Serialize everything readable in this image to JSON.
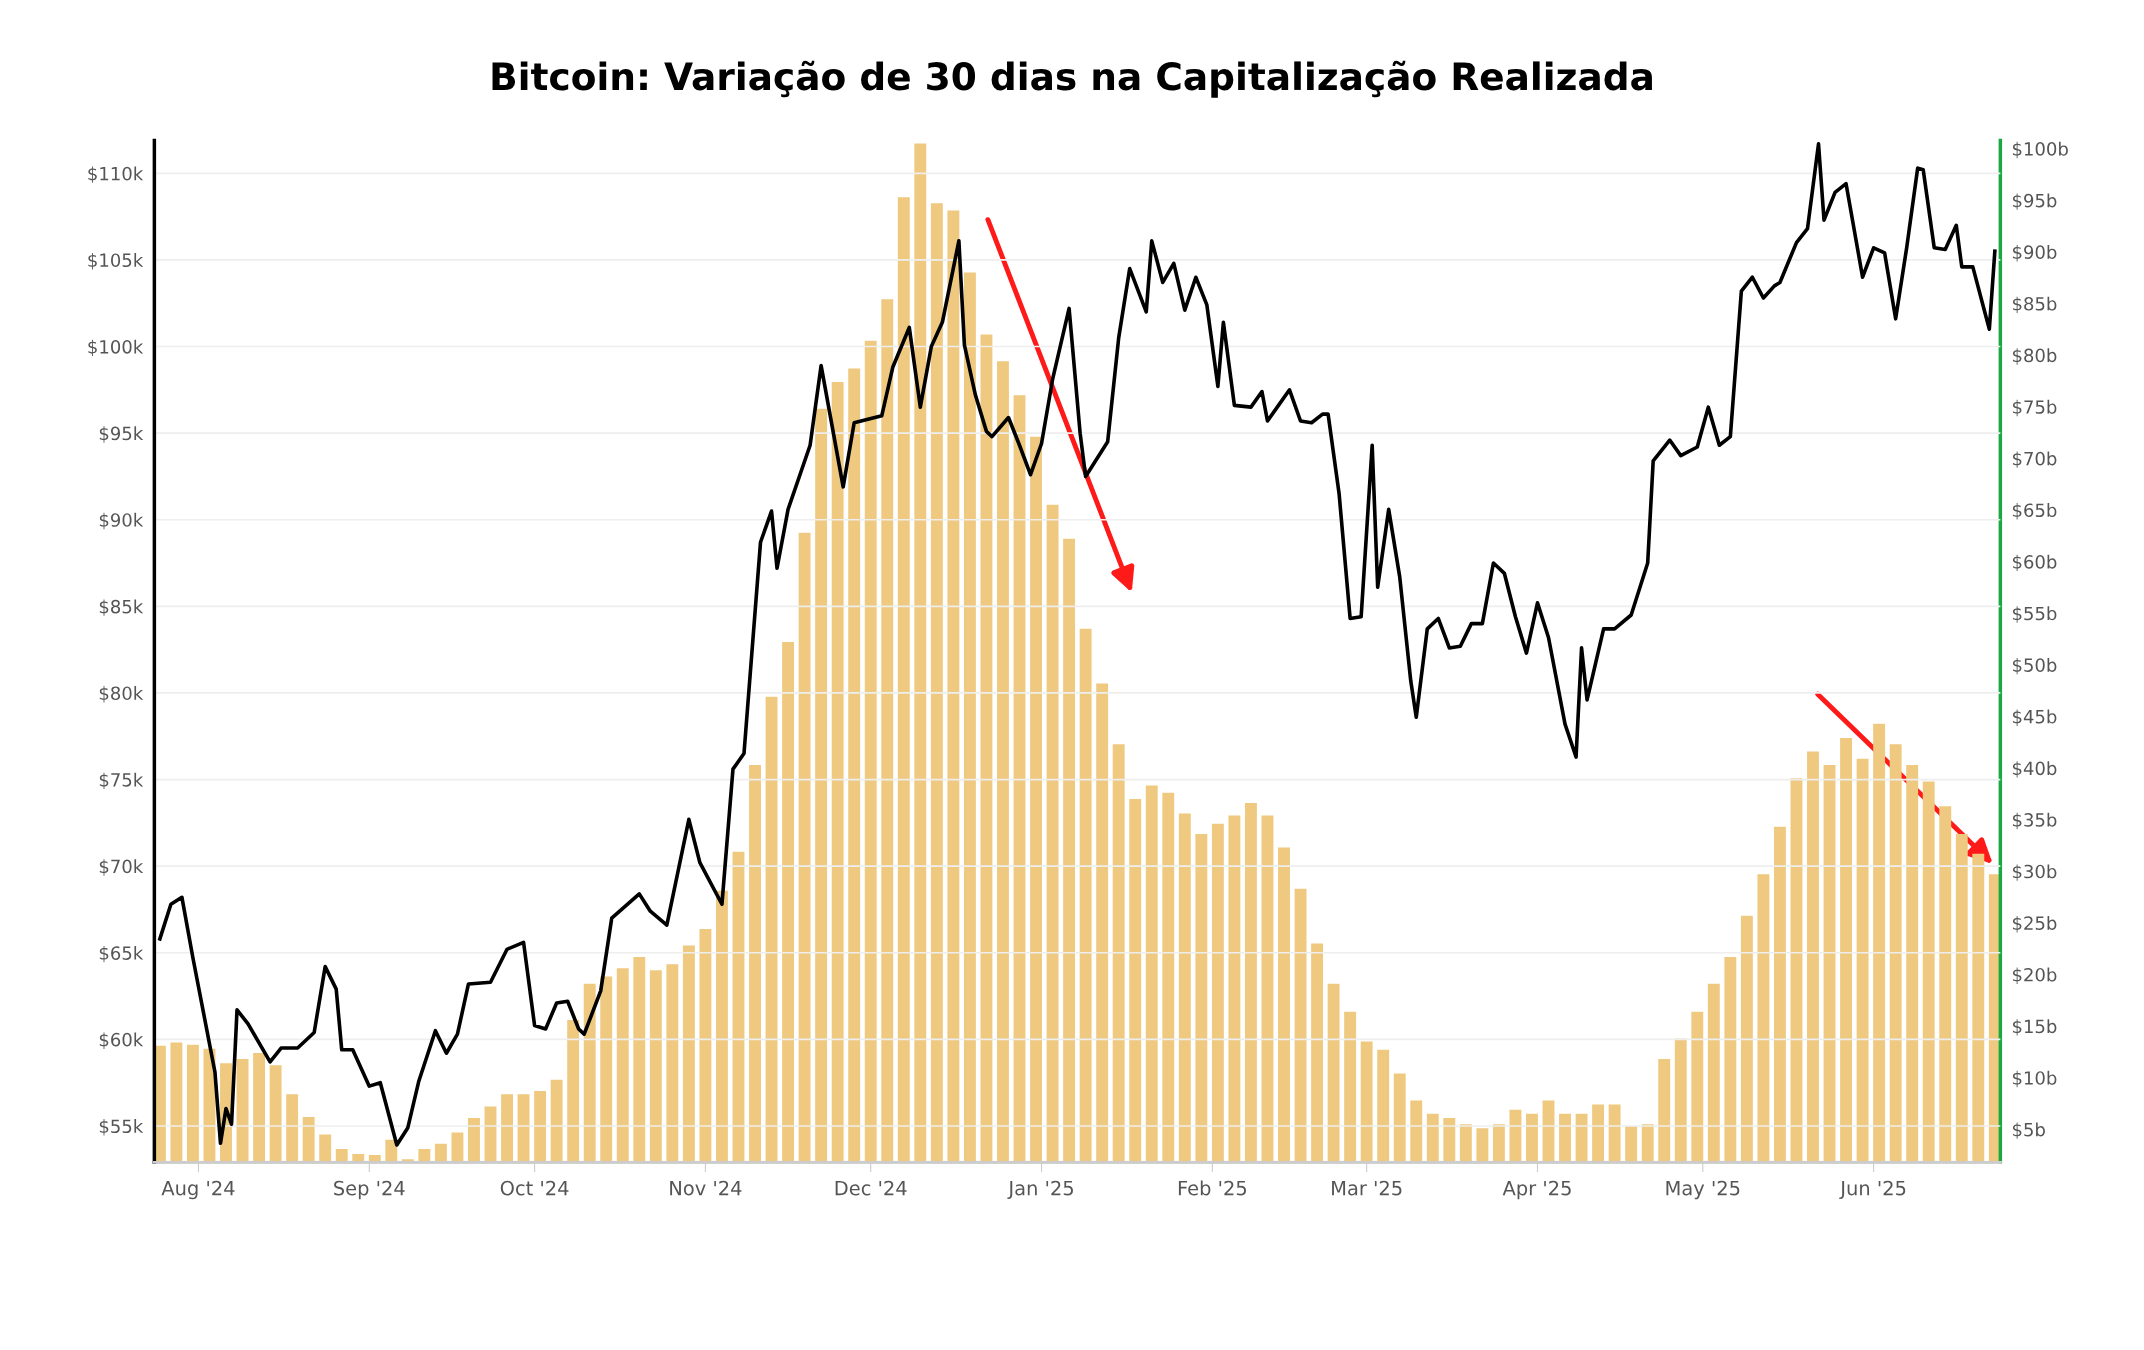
{
  "chart_data": {
    "type": "bar",
    "title": "Bitcoin: Variação de 30 dias na Capitalização Realizada",
    "series": [
      {
        "axis": "y2",
        "color": "#efc97f",
        "x": [
          "2024-07-25",
          "2024-07-28",
          "2024-07-31",
          "2024-08-03",
          "2024-08-06",
          "2024-08-09",
          "2024-08-12",
          "2024-08-15",
          "2024-08-18",
          "2024-08-21",
          "2024-08-24",
          "2024-08-27",
          "2024-08-30",
          "2024-09-02",
          "2024-09-05",
          "2024-09-08",
          "2024-09-11",
          "2024-09-14",
          "2024-09-17",
          "2024-09-20",
          "2024-09-23",
          "2024-09-26",
          "2024-09-29",
          "2024-10-02",
          "2024-10-05",
          "2024-10-08",
          "2024-10-11",
          "2024-10-14",
          "2024-10-17",
          "2024-10-20",
          "2024-10-23",
          "2024-10-26",
          "2024-10-29",
          "2024-11-01",
          "2024-11-04",
          "2024-11-07",
          "2024-11-10",
          "2024-11-13",
          "2024-11-16",
          "2024-11-19",
          "2024-11-22",
          "2024-11-25",
          "2024-11-28",
          "2024-12-01",
          "2024-12-04",
          "2024-12-07",
          "2024-12-10",
          "2024-12-13",
          "2024-12-16",
          "2024-12-19",
          "2024-12-22",
          "2024-12-25",
          "2024-12-28",
          "2024-12-31",
          "2025-01-03",
          "2025-01-06",
          "2025-01-09",
          "2025-01-12",
          "2025-01-15",
          "2025-01-18",
          "2025-01-21",
          "2025-01-24",
          "2025-01-27",
          "2025-01-30",
          "2025-02-02",
          "2025-02-05",
          "2025-02-08",
          "2025-02-11",
          "2025-02-14",
          "2025-02-17",
          "2025-02-20",
          "2025-02-23",
          "2025-02-26",
          "2025-03-01",
          "2025-03-04",
          "2025-03-07",
          "2025-03-10",
          "2025-03-13",
          "2025-03-16",
          "2025-03-19",
          "2025-03-22",
          "2025-03-25",
          "2025-03-28",
          "2025-03-31",
          "2025-04-03",
          "2025-04-06",
          "2025-04-09",
          "2025-04-12",
          "2025-04-15",
          "2025-04-18",
          "2025-04-21",
          "2025-04-24",
          "2025-04-27",
          "2025-04-30",
          "2025-05-03",
          "2025-05-06",
          "2025-05-09",
          "2025-05-12",
          "2025-05-15",
          "2025-05-18",
          "2025-05-21",
          "2025-05-24",
          "2025-05-27",
          "2025-05-30",
          "2025-06-02",
          "2025-06-05",
          "2025-06-08",
          "2025-06-11",
          "2025-06-14",
          "2025-06-17",
          "2025-06-20",
          "2025-06-23"
        ],
        "values": [
          13.1,
          13.4,
          13.2,
          12.8,
          11.4,
          11.8,
          12.4,
          11.2,
          8.4,
          6.2,
          4.5,
          3.1,
          2.6,
          2.5,
          4.0,
          2.1,
          3.1,
          3.6,
          4.7,
          6.1,
          7.2,
          8.4,
          8.4,
          8.7,
          9.8,
          15.6,
          19.1,
          19.8,
          20.6,
          21.7,
          20.4,
          21.0,
          22.8,
          24.4,
          28.1,
          31.9,
          40.3,
          46.9,
          52.2,
          62.8,
          74.8,
          77.4,
          78.7,
          81.4,
          85.4,
          95.3,
          100.5,
          94.7,
          94.0,
          88.0,
          82.0,
          79.4,
          76.1,
          72.1,
          65.5,
          62.2,
          53.5,
          48.2,
          42.3,
          37.0,
          38.3,
          37.6,
          35.6,
          33.6,
          34.6,
          35.4,
          36.6,
          35.4,
          32.3,
          28.3,
          23.0,
          19.1,
          16.4,
          13.5,
          12.7,
          10.4,
          7.8,
          6.5,
          6.1,
          5.5,
          5.1,
          5.5,
          6.9,
          6.5,
          7.8,
          6.5,
          6.5,
          7.4,
          7.4,
          5.3,
          5.5,
          11.8,
          13.8,
          16.4,
          19.1,
          21.7,
          25.7,
          29.7,
          34.3,
          39.0,
          41.6,
          40.3,
          42.9,
          40.9,
          44.3,
          42.3,
          40.3,
          38.7,
          36.3,
          33.6,
          31.7,
          29.7
        ]
      },
      {
        "type": "line",
        "axis": "y",
        "color": "#000000",
        "x": [
          "2024-07-25",
          "2024-07-27",
          "2024-07-29",
          "2024-07-31",
          "2024-08-02",
          "2024-08-04",
          "2024-08-05",
          "2024-08-06",
          "2024-08-07",
          "2024-08-08",
          "2024-08-10",
          "2024-08-14",
          "2024-08-16",
          "2024-08-19",
          "2024-08-22",
          "2024-08-24",
          "2024-08-26",
          "2024-08-27",
          "2024-08-29",
          "2024-09-01",
          "2024-09-03",
          "2024-09-06",
          "2024-09-08",
          "2024-09-10",
          "2024-09-13",
          "2024-09-15",
          "2024-09-17",
          "2024-09-19",
          "2024-09-23",
          "2024-09-26",
          "2024-09-29",
          "2024-10-01",
          "2024-10-03",
          "2024-10-05",
          "2024-10-07",
          "2024-10-09",
          "2024-10-10",
          "2024-10-13",
          "2024-10-15",
          "2024-10-20",
          "2024-10-22",
          "2024-10-25",
          "2024-10-29",
          "2024-10-31",
          "2024-11-04",
          "2024-11-06",
          "2024-11-08",
          "2024-11-11",
          "2024-11-13",
          "2024-11-14",
          "2024-11-16",
          "2024-11-20",
          "2024-11-22",
          "2024-11-26",
          "2024-11-28",
          "2024-12-03",
          "2024-12-05",
          "2024-12-08",
          "2024-12-10",
          "2024-12-12",
          "2024-12-14",
          "2024-12-17",
          "2024-12-18",
          "2024-12-20",
          "2024-12-22",
          "2024-12-23",
          "2024-12-26",
          "2024-12-28",
          "2024-12-30",
          "2025-01-01",
          "2025-01-03",
          "2025-01-06",
          "2025-01-08",
          "2025-01-09",
          "2025-01-13",
          "2025-01-15",
          "2025-01-17",
          "2025-01-20",
          "2025-01-21",
          "2025-01-23",
          "2025-01-25",
          "2025-01-27",
          "2025-01-29",
          "2025-01-31",
          "2025-02-02",
          "2025-02-03",
          "2025-02-05",
          "2025-02-08",
          "2025-02-10",
          "2025-02-11",
          "2025-02-13",
          "2025-02-15",
          "2025-02-17",
          "2025-02-19",
          "2025-02-21",
          "2025-02-22",
          "2025-02-24",
          "2025-02-26",
          "2025-02-28",
          "2025-03-02",
          "2025-03-03",
          "2025-03-05",
          "2025-03-07",
          "2025-03-09",
          "2025-03-10",
          "2025-03-12",
          "2025-03-14",
          "2025-03-16",
          "2025-03-18",
          "2025-03-20",
          "2025-03-22",
          "2025-03-24",
          "2025-03-26",
          "2025-03-28",
          "2025-03-30",
          "2025-04-01",
          "2025-04-03",
          "2025-04-06",
          "2025-04-08",
          "2025-04-09",
          "2025-04-10",
          "2025-04-13",
          "2025-04-15",
          "2025-04-18",
          "2025-04-21",
          "2025-04-22",
          "2025-04-25",
          "2025-04-27",
          "2025-04-30",
          "2025-05-02",
          "2025-05-04",
          "2025-05-06",
          "2025-05-08",
          "2025-05-10",
          "2025-05-12",
          "2025-05-14",
          "2025-05-15",
          "2025-05-18",
          "2025-05-20",
          "2025-05-22",
          "2025-05-23",
          "2025-05-25",
          "2025-05-27",
          "2025-05-30",
          "2025-06-01",
          "2025-06-03",
          "2025-06-05",
          "2025-06-07",
          "2025-06-09",
          "2025-06-10",
          "2025-06-12",
          "2025-06-14",
          "2025-06-16",
          "2025-06-17",
          "2025-06-19",
          "2025-06-22",
          "2025-06-23"
        ],
        "values": [
          65.8,
          67.8,
          68.2,
          64.7,
          61.4,
          58.1,
          54.0,
          56.0,
          55.1,
          61.7,
          60.9,
          58.7,
          59.5,
          59.5,
          60.4,
          64.2,
          62.9,
          59.4,
          59.4,
          57.3,
          57.5,
          53.9,
          54.9,
          57.6,
          60.5,
          59.2,
          60.3,
          63.2,
          63.3,
          65.2,
          65.6,
          60.8,
          60.6,
          62.1,
          62.2,
          60.6,
          60.3,
          62.8,
          67.0,
          68.4,
          67.4,
          66.6,
          72.7,
          70.2,
          67.8,
          75.6,
          76.5,
          88.7,
          90.5,
          87.2,
          90.6,
          94.3,
          98.9,
          91.9,
          95.6,
          96.0,
          98.8,
          101.1,
          96.5,
          100.0,
          101.4,
          106.1,
          100.1,
          97.2,
          95.1,
          94.8,
          95.9,
          94.3,
          92.6,
          94.4,
          98.1,
          102.2,
          95.0,
          92.5,
          94.5,
          100.5,
          104.5,
          102.0,
          106.1,
          103.7,
          104.8,
          102.1,
          104.0,
          102.4,
          97.7,
          101.4,
          96.6,
          96.5,
          97.4,
          95.7,
          96.6,
          97.5,
          95.7,
          95.6,
          96.1,
          96.1,
          91.5,
          84.3,
          84.4,
          94.3,
          86.1,
          90.6,
          86.7,
          80.7,
          78.6,
          83.7,
          84.3,
          82.6,
          82.7,
          84.0,
          84.0,
          87.5,
          86.9,
          84.4,
          82.3,
          85.2,
          83.2,
          78.2,
          76.3,
          82.6,
          79.6,
          83.7,
          83.7,
          84.5,
          87.5,
          93.4,
          94.6,
          93.7,
          94.2,
          96.5,
          94.3,
          94.8,
          103.2,
          104.0,
          102.8,
          103.5,
          103.7,
          106.0,
          106.8,
          111.7,
          107.3,
          108.9,
          109.4,
          104.0,
          105.7,
          105.4,
          101.6,
          105.7,
          110.3,
          110.2,
          105.7,
          105.6,
          107.0,
          104.6,
          104.6,
          101.0,
          105.5
        ]
      }
    ],
    "xlim": [
      "2024-07-24",
      "2025-06-24"
    ],
    "xticks": [
      {
        "value": "2024-08-01",
        "label": "Aug '24"
      },
      {
        "value": "2024-09-01",
        "label": "Sep '24"
      },
      {
        "value": "2024-10-01",
        "label": "Oct '24"
      },
      {
        "value": "2024-11-01",
        "label": "Nov '24"
      },
      {
        "value": "2024-12-01",
        "label": "Dec '24"
      },
      {
        "value": "2025-01-01",
        "label": "Jan '25"
      },
      {
        "value": "2025-02-01",
        "label": "Feb '25"
      },
      {
        "value": "2025-03-01",
        "label": "Mar '25"
      },
      {
        "value": "2025-04-01",
        "label": "Apr '25"
      },
      {
        "value": "2025-05-01",
        "label": "May '25"
      },
      {
        "value": "2025-06-01",
        "label": "Jun '25"
      }
    ],
    "ylim": [
      52.9,
      111.9
    ],
    "yticks": [
      {
        "value": 55,
        "label": "$55k"
      },
      {
        "value": 60,
        "label": "$60k"
      },
      {
        "value": 65,
        "label": "$65k"
      },
      {
        "value": 70,
        "label": "$70k"
      },
      {
        "value": 75,
        "label": "$75k"
      },
      {
        "value": 80,
        "label": "$80k"
      },
      {
        "value": 85,
        "label": "$85k"
      },
      {
        "value": 90,
        "label": "$90k"
      },
      {
        "value": 95,
        "label": "$95k"
      },
      {
        "value": 100,
        "label": "$100k"
      },
      {
        "value": 105,
        "label": "$105k"
      },
      {
        "value": 110,
        "label": "$110k"
      }
    ],
    "y2lim": [
      1.8,
      100.8
    ],
    "y2ticks": [
      {
        "value": 5,
        "label": "$5b"
      },
      {
        "value": 10,
        "label": "$10b"
      },
      {
        "value": 15,
        "label": "$15b"
      },
      {
        "value": 20,
        "label": "$20b"
      },
      {
        "value": 25,
        "label": "$25b"
      },
      {
        "value": 30,
        "label": "$30b"
      },
      {
        "value": 35,
        "label": "$35b"
      },
      {
        "value": 40,
        "label": "$40b"
      },
      {
        "value": 45,
        "label": "$45b"
      },
      {
        "value": 50,
        "label": "$50b"
      },
      {
        "value": 55,
        "label": "$55b"
      },
      {
        "value": 60,
        "label": "$60b"
      },
      {
        "value": 65,
        "label": "$65b"
      },
      {
        "value": 70,
        "label": "$70b"
      },
      {
        "value": 75,
        "label": "$75b"
      },
      {
        "value": 80,
        "label": "$80b"
      },
      {
        "value": 85,
        "label": "$85b"
      },
      {
        "value": 90,
        "label": "$90b"
      },
      {
        "value": 95,
        "label": "$95b"
      },
      {
        "value": 100,
        "label": "$100b"
      }
    ],
    "grid": "y",
    "marker": "none",
    "line_style": "solid"
  }
}
